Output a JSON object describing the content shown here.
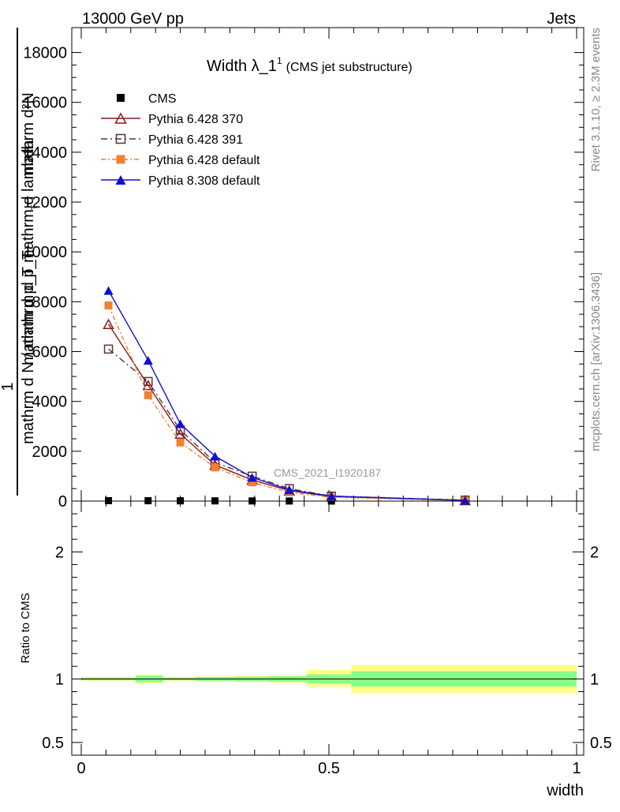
{
  "header": {
    "left": "13000 GeV pp",
    "right": "Jets"
  },
  "side_labels": {
    "rivet": "Rivet 3.1.10, ≥ 2.3M events",
    "mcplots": "mcplots.cern.ch [arXiv:1306.3436]"
  },
  "watermark": "CMS_2021_I1920187",
  "colors": {
    "cms": "#000000",
    "p370": "#8b1a1a",
    "p391": "#5c3040",
    "p6def": "#f28030",
    "p8def": "#1010d0",
    "band_outer": "#ffff88",
    "band_inner": "#88ff88"
  },
  "chart_data": [
    {
      "type": "line",
      "title_main": "Width λ_1",
      "title_sup": "1",
      "title_extra": "(CMS jet substructure)",
      "ylabel_top": "mathrm d²N",
      "ylabel_mid": "mathrm d p_T mathrm d lambda",
      "ylabel_num": "1",
      "ylabel_bottom": "mathrm d N / mathrm d p_T",
      "ylabel_sub": "T",
      "xlim": [
        0,
        1
      ],
      "ylim": [
        0,
        19000
      ],
      "y_ticks": [
        0,
        2000,
        4000,
        6000,
        8000,
        10000,
        12000,
        14000,
        16000,
        18000
      ],
      "y_tick_labels": [
        "0",
        "2000",
        "4000",
        "6000",
        "8000",
        "10000",
        "12000",
        "14000",
        "16000",
        "18000"
      ],
      "x": [
        0.055,
        0.135,
        0.2,
        0.27,
        0.345,
        0.42,
        0.505,
        0.775
      ],
      "series": [
        {
          "name": "CMS",
          "key": "cms",
          "marker": "square-filled",
          "dash": "",
          "values": [
            18,
            15,
            12,
            9,
            6,
            4,
            2,
            0.5
          ]
        },
        {
          "name": "Pythia 6.428 370",
          "key": "p370",
          "marker": "triangle-open",
          "dash": "",
          "values": [
            7100,
            4650,
            2700,
            1450,
            850,
            420,
            180,
            30
          ]
        },
        {
          "name": "Pythia 6.428 391",
          "key": "p391",
          "marker": "square-open",
          "dash": "8,4,2,4",
          "values": [
            6100,
            4800,
            2850,
            1550,
            1000,
            500,
            200,
            40
          ]
        },
        {
          "name": "Pythia 6.428 default",
          "key": "p6def",
          "marker": "square-filled",
          "dash": "6,3,2,3",
          "values": [
            7850,
            4250,
            2350,
            1350,
            750,
            350,
            150,
            20
          ]
        },
        {
          "name": "Pythia 8.308 default",
          "key": "p8def",
          "marker": "triangle-filled",
          "dash": "",
          "values": [
            8450,
            5650,
            3100,
            1800,
            950,
            450,
            200,
            30
          ]
        }
      ]
    },
    {
      "type": "area",
      "ylabel": "Ratio to CMS",
      "xlabel": "width",
      "xlim": [
        0,
        1
      ],
      "ylim": [
        0.4,
        2.4
      ],
      "x_ticks": [
        0,
        0.5,
        1
      ],
      "x_tick_labels": [
        "0",
        "0.5",
        "1"
      ],
      "y_ticks": [
        0.5,
        1,
        2
      ],
      "y_tick_labels": [
        "0.5",
        "1",
        "2"
      ],
      "bands": [
        {
          "x0": 0.0,
          "x1": 0.11,
          "outer": [
            0.985,
            1.015
          ],
          "inner": [
            0.99,
            1.01
          ]
        },
        {
          "x0": 0.11,
          "x1": 0.165,
          "outer": [
            0.965,
            1.035
          ],
          "inner": [
            0.975,
            1.025
          ]
        },
        {
          "x0": 0.165,
          "x1": 0.23,
          "outer": [
            0.985,
            1.015
          ],
          "inner": [
            0.99,
            1.01
          ]
        },
        {
          "x0": 0.23,
          "x1": 0.31,
          "outer": [
            0.98,
            1.02
          ],
          "inner": [
            0.985,
            1.015
          ]
        },
        {
          "x0": 0.31,
          "x1": 0.38,
          "outer": [
            0.975,
            1.025
          ],
          "inner": [
            0.982,
            1.018
          ]
        },
        {
          "x0": 0.38,
          "x1": 0.455,
          "outer": [
            0.97,
            1.03
          ],
          "inner": [
            0.978,
            1.022
          ]
        },
        {
          "x0": 0.455,
          "x1": 0.545,
          "outer": [
            0.94,
            1.07
          ],
          "inner": [
            0.965,
            1.035
          ]
        },
        {
          "x0": 0.545,
          "x1": 1.0,
          "outer": [
            0.89,
            1.11
          ],
          "inner": [
            0.94,
            1.06
          ]
        }
      ]
    }
  ]
}
